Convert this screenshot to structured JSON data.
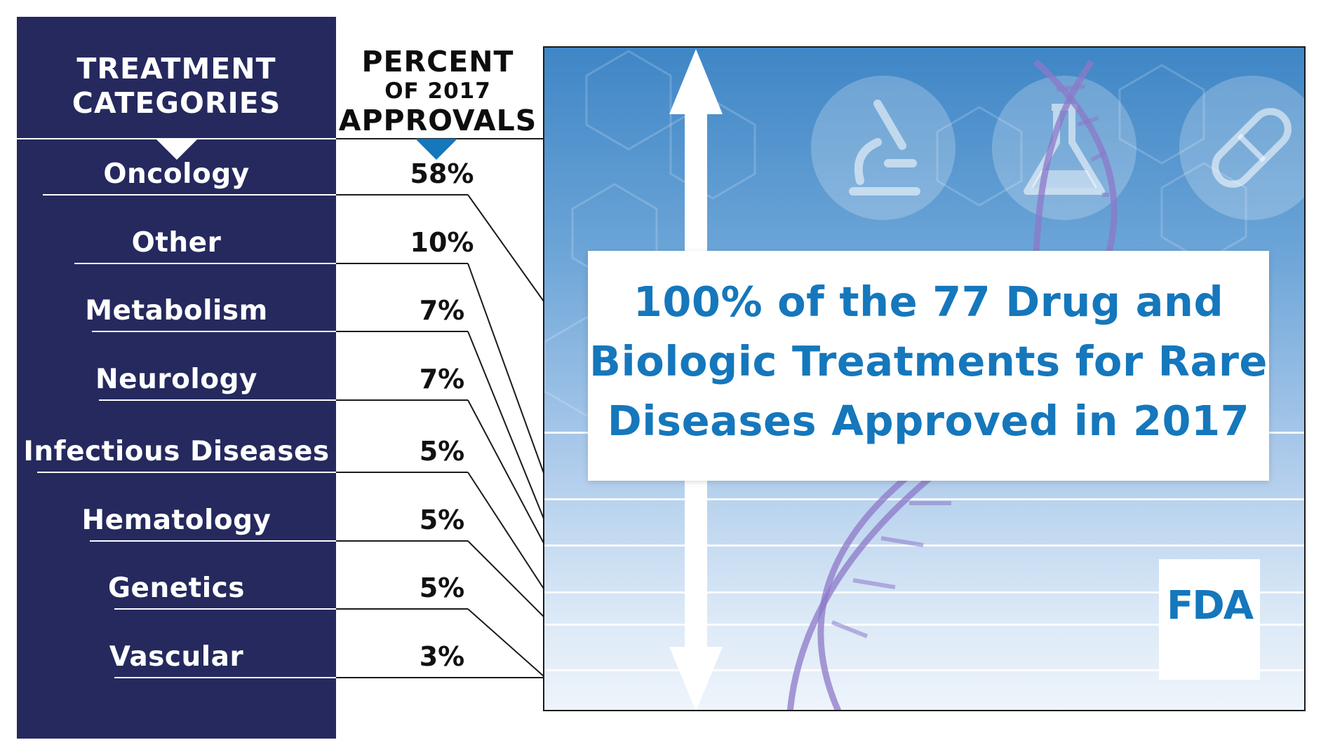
{
  "headers": {
    "categories_line1": "TREATMENT",
    "categories_line2": "CATEGORIES",
    "percent_line1": "PERCENT",
    "percent_line2": "OF 2017",
    "percent_line3": "APPROVALS"
  },
  "headline": {
    "line1": "100% of the 77 Drug and",
    "line2": "Biologic Treatments for Rare",
    "line3": "Diseases Approved in 2017"
  },
  "logo_text": "FDA",
  "colors": {
    "navy": "#25295e",
    "accent_blue": "#1577bc",
    "headline_blue": "#1577bc"
  },
  "chart_data": {
    "type": "table",
    "title": "100% of the 77 Drug and Biologic Treatments for Rare Diseases Approved in 2017",
    "columns": [
      "TREATMENT CATEGORIES",
      "PERCENT OF 2017 APPROVALS"
    ],
    "categories": [
      "Oncology",
      "Other",
      "Metabolism",
      "Neurology",
      "Infectious Diseases",
      "Hematology",
      "Genetics",
      "Vascular"
    ],
    "values": [
      58,
      10,
      7,
      7,
      5,
      5,
      5,
      3
    ],
    "value_labels": [
      "58%",
      "10%",
      "7%",
      "7%",
      "5%",
      "5%",
      "5%",
      "3%"
    ],
    "unit": "%",
    "total_percent": 100,
    "total_approvals": 77
  }
}
